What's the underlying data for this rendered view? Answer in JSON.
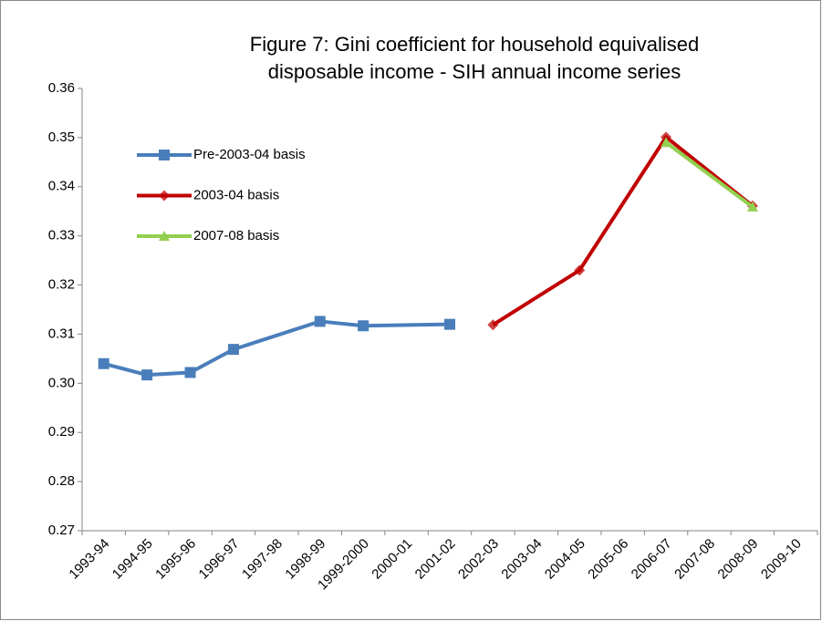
{
  "chart_data": {
    "type": "line",
    "title": "Figure 7: Gini coefficient for household equivalised disposable income - SIH annual income series",
    "categories": [
      "1993-94",
      "1994-95",
      "1995-96",
      "1996-97",
      "1997-98",
      "1998-99",
      "1999-2000",
      "2000-01",
      "2001-02",
      "2002-03",
      "2003-04",
      "2004-05",
      "2005-06",
      "2006-07",
      "2007-08",
      "2008-09",
      "2009-10"
    ],
    "series": [
      {
        "name": "Pre-2003-04 basis",
        "color": "#4a7ebb",
        "marker": "square",
        "x": [
          "1993-94",
          "1994-95",
          "1995-96",
          "1996-97",
          "1998-99",
          "1999-2000",
          "2001-02"
        ],
        "values": [
          0.304,
          0.3017,
          0.3022,
          0.3069,
          0.3126,
          0.3117,
          0.312
        ]
      },
      {
        "name": "2003-04 basis",
        "color": "#c00000",
        "marker": "diamond",
        "x": [
          "2002-03",
          "2004-05",
          "2006-07",
          "2008-09"
        ],
        "values": [
          0.3119,
          0.323,
          0.3501,
          0.3361
        ]
      },
      {
        "name": "2007-08 basis",
        "color": "#92d050",
        "marker": "triangle",
        "x": [
          "2006-07",
          "2008-09"
        ],
        "values": [
          0.349,
          0.3359
        ]
      }
    ],
    "ylim": [
      0.27,
      0.36
    ],
    "yticks": [
      0.27,
      0.28,
      0.29,
      {
        "value": 0.3,
        "label": "0.30"
      },
      0.31,
      0.32,
      0.33,
      0.34,
      0.35,
      0.36
    ],
    "grid": false,
    "legend": "top-left"
  }
}
